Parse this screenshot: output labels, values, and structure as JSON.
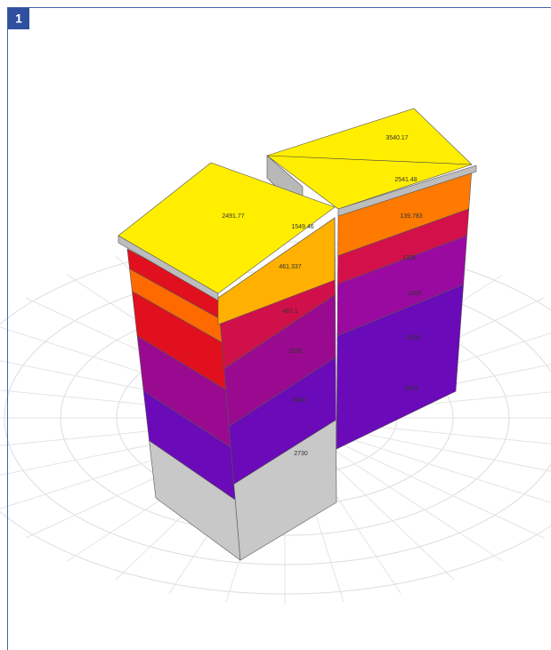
{
  "badge": "1",
  "labels": [
    "2491.77",
    "1549.46",
    "461.337",
    "467.1",
    "2530",
    "5040",
    "2730",
    "3540.17",
    "2541.48",
    "139.783",
    "1330",
    "2306",
    "3303",
    "2803"
  ]
}
